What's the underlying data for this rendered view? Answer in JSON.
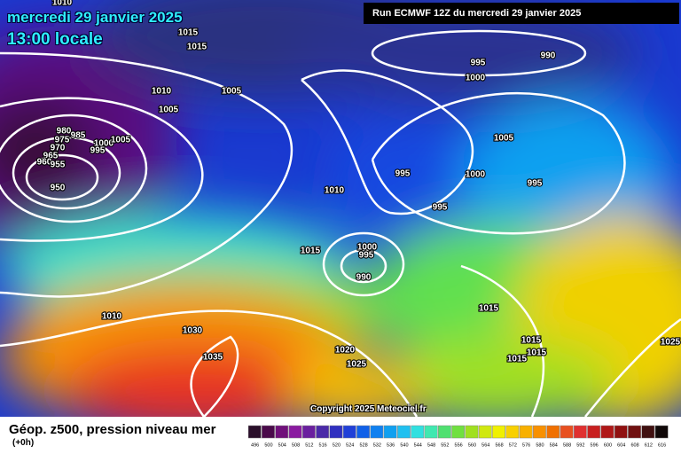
{
  "header": {
    "date": "mercredi 29 janvier 2025",
    "time": "13:00 locale",
    "run": "Run ECMWF 12Z du mercredi 29 janvier 2025"
  },
  "copyright": "Copyright 2025 Meteociel.fr",
  "legend": {
    "title": "Géop. z500, pression niveau mer",
    "subtitle": "(+0h)",
    "ticks": [
      496,
      500,
      504,
      508,
      512,
      516,
      520,
      524,
      528,
      532,
      536,
      540,
      544,
      548,
      552,
      556,
      560,
      564,
      568,
      572,
      576,
      580,
      584,
      588,
      592,
      596,
      600,
      604,
      608,
      612,
      616
    ],
    "colors": [
      "#2a0f2a",
      "#4a0a4a",
      "#70107a",
      "#8a1aa0",
      "#6a1f9f",
      "#4a2aa8",
      "#3030c0",
      "#2040d8",
      "#1060e8",
      "#1080f0",
      "#10a0f0",
      "#20c0f0",
      "#30e0e0",
      "#40e8b0",
      "#50e070",
      "#70e040",
      "#a0e020",
      "#d0e810",
      "#f0f000",
      "#f8d000",
      "#f8b000",
      "#f89000",
      "#f07000",
      "#e85020",
      "#e03030",
      "#c82020",
      "#b01818",
      "#901010",
      "#701010",
      "#401010",
      "#100808"
    ]
  },
  "isobar_labels": [
    1010,
    1015,
    1015,
    1010,
    1005,
    1005,
    980,
    985,
    975,
    970,
    965,
    960,
    955,
    950,
    1000,
    995,
    1005,
    995,
    990,
    1000,
    1005,
    995,
    1000,
    995,
    995,
    1010,
    1015,
    1000,
    995,
    990,
    1010,
    1030,
    1035,
    1020,
    1025,
    1015,
    1015,
    1015,
    1015,
    1025
  ]
}
